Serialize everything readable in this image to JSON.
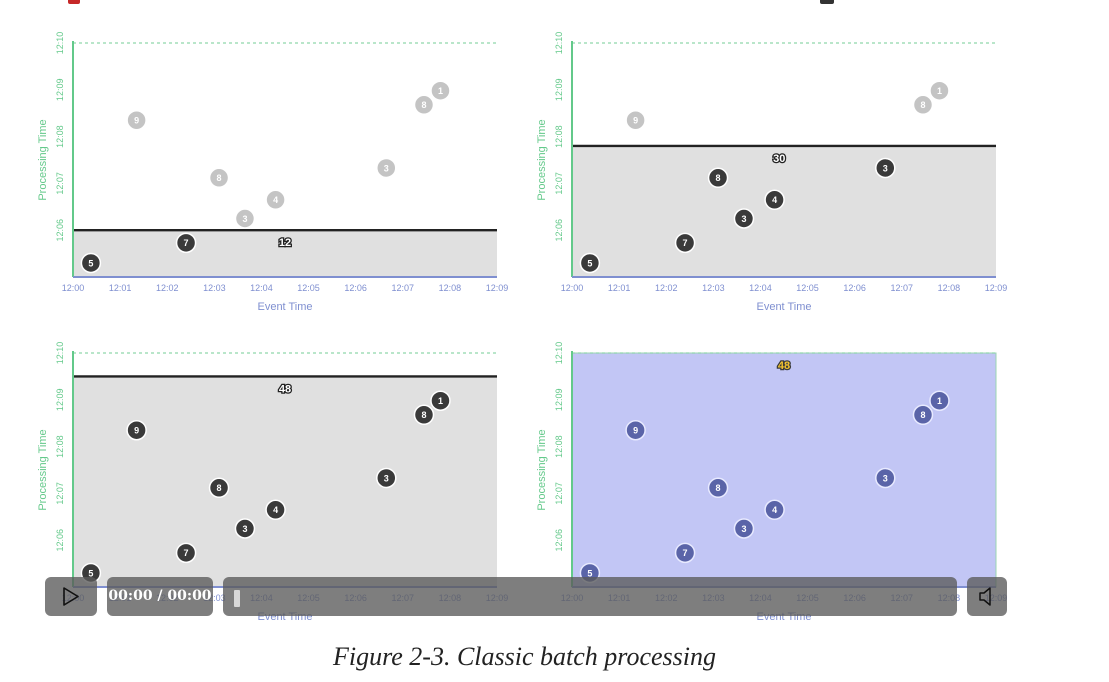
{
  "figure": {
    "caption": "Figure 2-3. Classic batch processing"
  },
  "colors": {
    "event_time_axis": "#7f8fd0",
    "processing_time_axis": "#63c98a",
    "batch_fill_gray": "#e0e0e0",
    "batch_fill_blue": "#c2c6f5",
    "point_dark": "#3a3a3a",
    "point_faded": "#c4c4c4",
    "point_blue": "#5a64a8",
    "count_highlight": "#f2c230"
  },
  "chart_data": [
    {
      "type": "scatter",
      "title": "",
      "xlabel": "Event Time",
      "ylabel": "Processing Time",
      "xticks": [
        "12:00",
        "12:01",
        "12:02",
        "12:03",
        "12:04",
        "12:05",
        "12:06",
        "12:07",
        "12:08",
        "12:09"
      ],
      "yticks": [
        "12:06",
        "12:07",
        "12:08",
        "12:09",
        "12:10"
      ],
      "xlim": [
        0,
        9
      ],
      "ylim": [
        5.0,
        10.0
      ],
      "points": [
        {
          "label": "5",
          "x": 0.38,
          "y": 5.3,
          "state": "done"
        },
        {
          "label": "9",
          "x": 1.35,
          "y": 8.35,
          "state": "pending"
        },
        {
          "label": "7",
          "x": 2.4,
          "y": 5.73,
          "state": "done"
        },
        {
          "label": "8",
          "x": 3.1,
          "y": 7.12,
          "state": "pending"
        },
        {
          "label": "3",
          "x": 3.65,
          "y": 6.25,
          "state": "pending"
        },
        {
          "label": "4",
          "x": 4.3,
          "y": 6.65,
          "state": "pending"
        },
        {
          "label": "3",
          "x": 6.65,
          "y": 7.33,
          "state": "pending"
        },
        {
          "label": "8",
          "x": 7.45,
          "y": 8.68,
          "state": "pending"
        },
        {
          "label": "1",
          "x": 7.8,
          "y": 8.98,
          "state": "pending"
        }
      ],
      "batch": {
        "processing_time": 6.0,
        "count": "12",
        "count_x": 4.5,
        "highlight": false,
        "fill": "gray"
      }
    },
    {
      "type": "scatter",
      "title": "",
      "xlabel": "Event Time",
      "ylabel": "Processing Time",
      "xticks": [
        "12:00",
        "12:01",
        "12:02",
        "12:03",
        "12:04",
        "12:05",
        "12:06",
        "12:07",
        "12:08",
        "12:09"
      ],
      "yticks": [
        "12:06",
        "12:07",
        "12:08",
        "12:09",
        "12:10"
      ],
      "xlim": [
        0,
        9
      ],
      "ylim": [
        5.0,
        10.0
      ],
      "points": [
        {
          "label": "5",
          "x": 0.38,
          "y": 5.3,
          "state": "done"
        },
        {
          "label": "9",
          "x": 1.35,
          "y": 8.35,
          "state": "pending"
        },
        {
          "label": "7",
          "x": 2.4,
          "y": 5.73,
          "state": "done"
        },
        {
          "label": "8",
          "x": 3.1,
          "y": 7.12,
          "state": "done"
        },
        {
          "label": "3",
          "x": 3.65,
          "y": 6.25,
          "state": "done"
        },
        {
          "label": "4",
          "x": 4.3,
          "y": 6.65,
          "state": "done"
        },
        {
          "label": "3",
          "x": 6.65,
          "y": 7.33,
          "state": "done"
        },
        {
          "label": "8",
          "x": 7.45,
          "y": 8.68,
          "state": "pending"
        },
        {
          "label": "1",
          "x": 7.8,
          "y": 8.98,
          "state": "pending"
        }
      ],
      "batch": {
        "processing_time": 7.8,
        "count": "30",
        "count_x": 4.4,
        "highlight": false,
        "fill": "gray"
      }
    },
    {
      "type": "scatter",
      "title": "",
      "xlabel": "Event Time",
      "ylabel": "Processing Time",
      "xticks": [
        "12:00",
        "12:01",
        "12:02",
        "12:03",
        "12:04",
        "12:05",
        "12:06",
        "12:07",
        "12:08",
        "12:09"
      ],
      "yticks": [
        "12:06",
        "12:07",
        "12:08",
        "12:09",
        "12:10"
      ],
      "xlim": [
        0,
        9
      ],
      "ylim": [
        5.0,
        10.0
      ],
      "points": [
        {
          "label": "5",
          "x": 0.38,
          "y": 5.3,
          "state": "done"
        },
        {
          "label": "9",
          "x": 1.35,
          "y": 8.35,
          "state": "done"
        },
        {
          "label": "7",
          "x": 2.4,
          "y": 5.73,
          "state": "done"
        },
        {
          "label": "8",
          "x": 3.1,
          "y": 7.12,
          "state": "done"
        },
        {
          "label": "3",
          "x": 3.65,
          "y": 6.25,
          "state": "done"
        },
        {
          "label": "4",
          "x": 4.3,
          "y": 6.65,
          "state": "done"
        },
        {
          "label": "3",
          "x": 6.65,
          "y": 7.33,
          "state": "done"
        },
        {
          "label": "8",
          "x": 7.45,
          "y": 8.68,
          "state": "done"
        },
        {
          "label": "1",
          "x": 7.8,
          "y": 8.98,
          "state": "done"
        }
      ],
      "batch": {
        "processing_time": 9.5,
        "count": "48",
        "count_x": 4.5,
        "highlight": false,
        "fill": "gray"
      }
    },
    {
      "type": "scatter",
      "title": "",
      "xlabel": "Event Time",
      "ylabel": "Processing Time",
      "xticks": [
        "12:00",
        "12:01",
        "12:02",
        "12:03",
        "12:04",
        "12:05",
        "12:06",
        "12:07",
        "12:08",
        "12:09"
      ],
      "yticks": [
        "12:06",
        "12:07",
        "12:08",
        "12:09",
        "12:10"
      ],
      "xlim": [
        0,
        9
      ],
      "ylim": [
        5.0,
        10.0
      ],
      "points": [
        {
          "label": "5",
          "x": 0.38,
          "y": 5.3,
          "state": "final"
        },
        {
          "label": "9",
          "x": 1.35,
          "y": 8.35,
          "state": "final"
        },
        {
          "label": "7",
          "x": 2.4,
          "y": 5.73,
          "state": "final"
        },
        {
          "label": "8",
          "x": 3.1,
          "y": 7.12,
          "state": "final"
        },
        {
          "label": "3",
          "x": 3.65,
          "y": 6.25,
          "state": "final"
        },
        {
          "label": "4",
          "x": 4.3,
          "y": 6.65,
          "state": "final"
        },
        {
          "label": "3",
          "x": 6.65,
          "y": 7.33,
          "state": "final"
        },
        {
          "label": "8",
          "x": 7.45,
          "y": 8.68,
          "state": "final"
        },
        {
          "label": "1",
          "x": 7.8,
          "y": 8.98,
          "state": "final"
        }
      ],
      "batch": {
        "processing_time": 10.0,
        "count": "48",
        "count_x": 4.5,
        "highlight": true,
        "fill": "blue"
      }
    }
  ],
  "player": {
    "time": "00:00 / 00:00",
    "play_icon": "play-icon",
    "volume_icon": "speaker-icon"
  }
}
